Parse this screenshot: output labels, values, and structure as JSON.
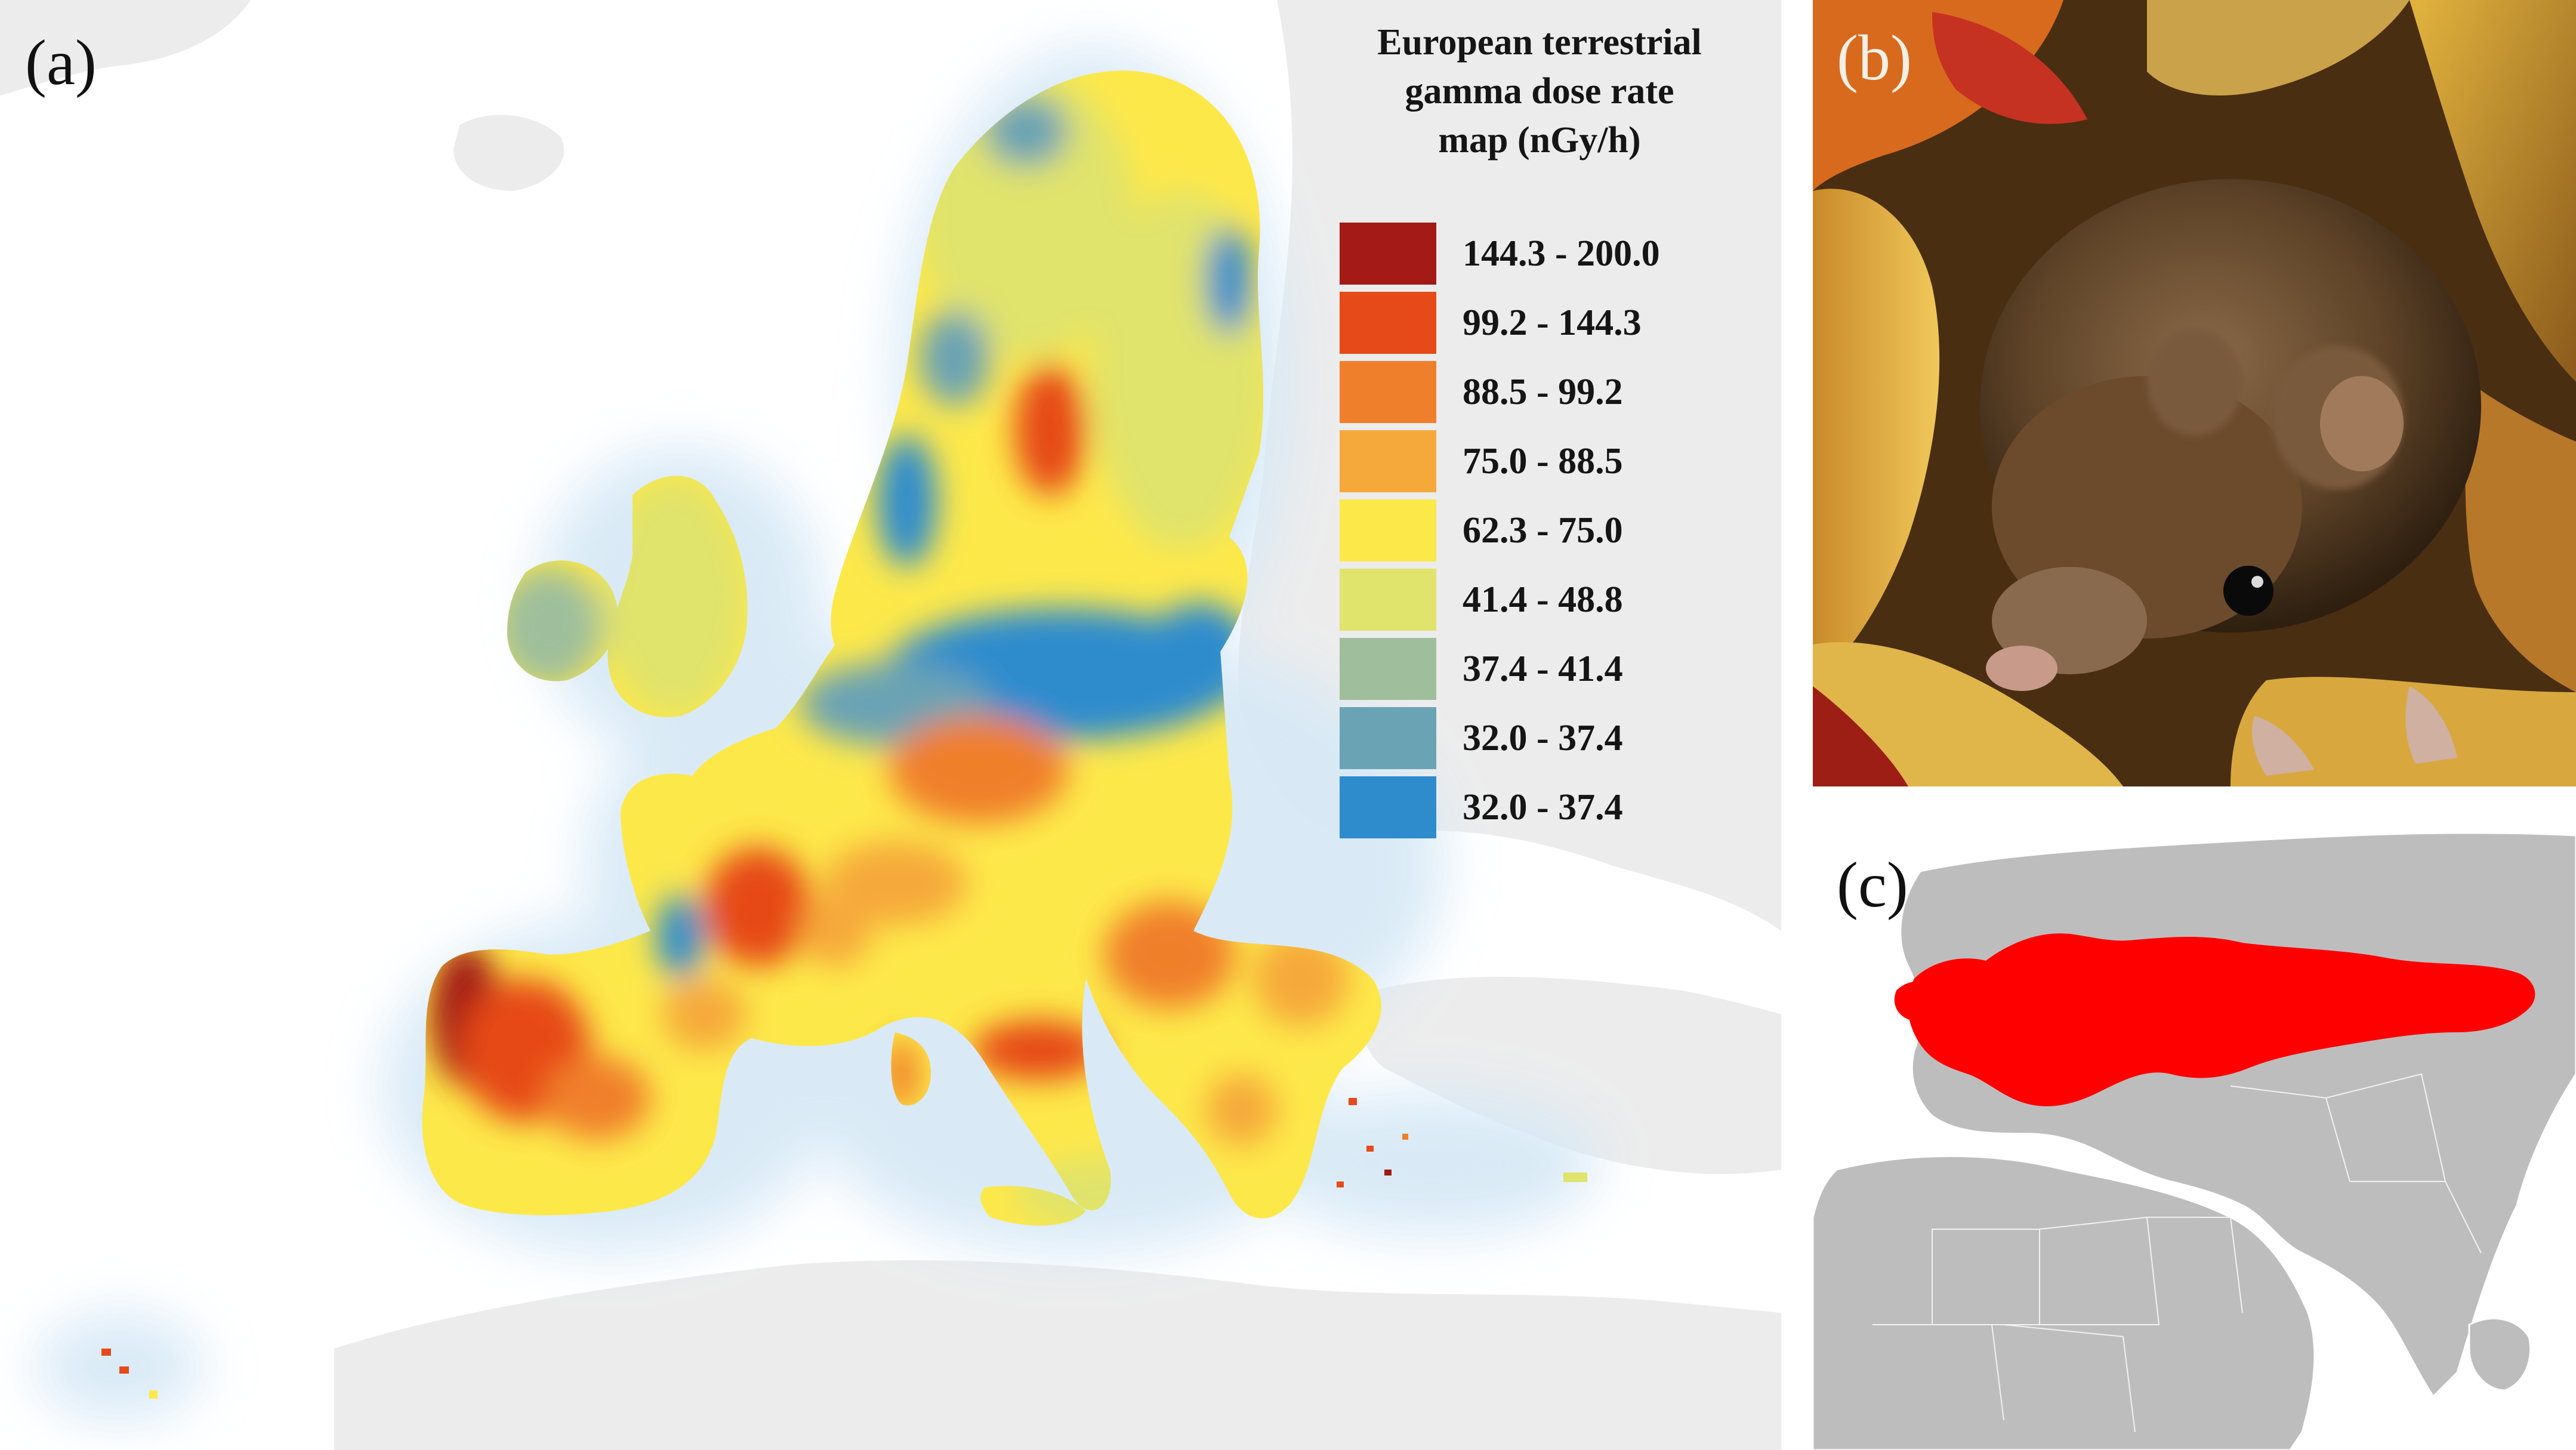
{
  "panels": {
    "a": {
      "letter": "(a)"
    },
    "b": {
      "letter": "(b)"
    },
    "c": {
      "letter": "(c)"
    }
  },
  "legend": {
    "title_lines": [
      "European terrestrial",
      "gamma dose rate",
      "map (nGy/h)"
    ],
    "items": [
      {
        "label": "144.3 - 200.0",
        "color": "#a31a16"
      },
      {
        "label": "99.2 - 144.3",
        "color": "#e64a19"
      },
      {
        "label": "88.5 - 99.2",
        "color": "#f07f2c"
      },
      {
        "label": "75.0 - 88.5",
        "color": "#f6a93b"
      },
      {
        "label": "62.3 - 75.0",
        "color": "#fde84a"
      },
      {
        "label": "41.4 - 48.8",
        "color": "#e0e36c"
      },
      {
        "label": "37.4 - 41.4",
        "color": "#9fbf9c"
      },
      {
        "label": "32.0 - 37.4",
        "color": "#6aa3b4"
      },
      {
        "label": "32.0 - 37.4",
        "color": "#2e8ccd"
      }
    ]
  },
  "range_map": {
    "range_color": "#ff0000",
    "land_color": "#bdbdbd"
  }
}
